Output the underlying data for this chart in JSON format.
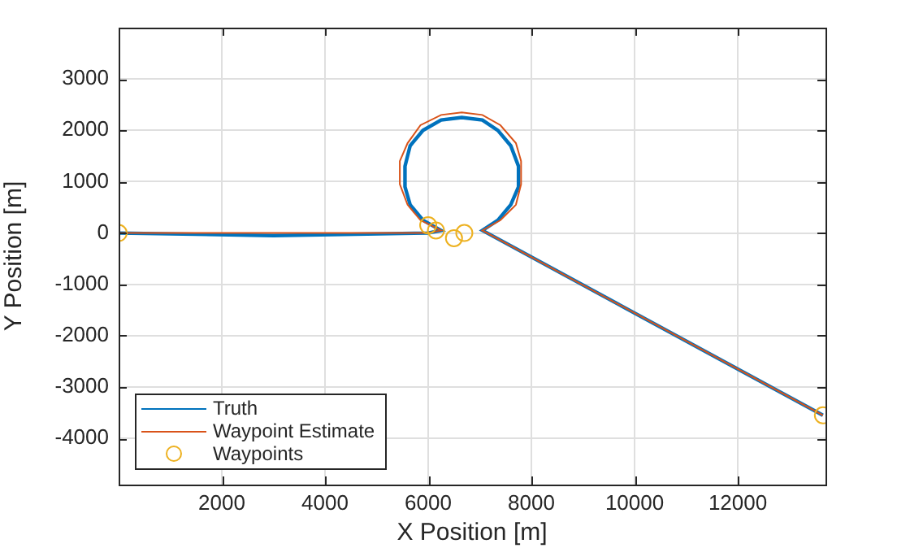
{
  "chart_data": {
    "type": "line",
    "xlabel": "X Position [m]",
    "ylabel": "Y Position [m]",
    "xlim": [
      0,
      13700
    ],
    "ylim": [
      -4900,
      4000
    ],
    "xticks": [
      2000,
      4000,
      6000,
      8000,
      10000,
      12000
    ],
    "yticks": [
      -4000,
      -3000,
      -2000,
      -1000,
      0,
      1000,
      2000,
      3000
    ],
    "grid": true,
    "legend": "bottom left",
    "series": [
      {
        "name": "Truth",
        "marker": "none",
        "color": "#0072bd",
        "x": [
          0,
          3000,
          6000,
          6250,
          5900,
          5650,
          5550,
          5550,
          5650,
          5900,
          6250,
          6650,
          7050,
          7350,
          7600,
          7750,
          7750,
          7600,
          7350,
          7050,
          13650
        ],
        "values": [
          0,
          -50,
          0,
          50,
          250,
          550,
          900,
          1300,
          1700,
          2000,
          2200,
          2250,
          2200,
          2000,
          1700,
          1300,
          900,
          550,
          250,
          50,
          -3550
        ]
      },
      {
        "name": "Waypoint Estimate",
        "marker": "none",
        "color": "#d95319",
        "x": [
          0,
          3000,
          6000,
          6250,
          5850,
          5600,
          5450,
          5450,
          5600,
          5850,
          6250,
          6650,
          7050,
          7400,
          7700,
          7800,
          7800,
          7700,
          7400,
          7050,
          13650
        ],
        "values": [
          0,
          0,
          0,
          50,
          250,
          550,
          950,
          1400,
          1750,
          2100,
          2300,
          2350,
          2300,
          2100,
          1750,
          1400,
          950,
          550,
          250,
          50,
          -3550
        ]
      },
      {
        "name": "Waypoints",
        "type": "scatter",
        "marker": "circle",
        "color": "#edb120",
        "x": [
          0,
          6000,
          6150,
          6500,
          6700,
          13650
        ],
        "values": [
          0,
          150,
          50,
          -100,
          0,
          -3550
        ]
      }
    ]
  }
}
